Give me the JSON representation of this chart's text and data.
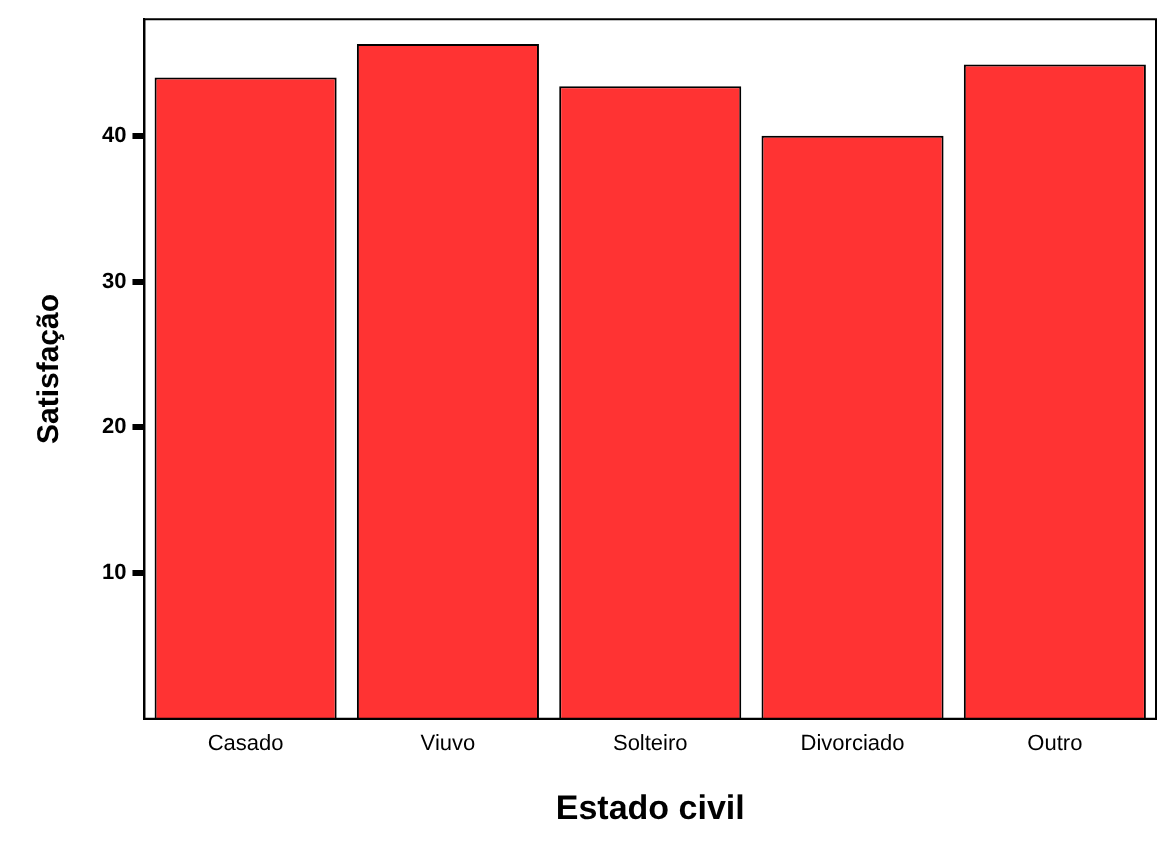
{
  "chart_data": {
    "type": "bar",
    "xlabel": "Estado civil",
    "ylabel": "Satisfação",
    "categories": [
      "Casado",
      "Viuvo",
      "Solteiro",
      "Divorciado",
      "Outro"
    ],
    "values": [
      44,
      46.3,
      43.4,
      40,
      44.9
    ],
    "color": "#ff3333",
    "ylim": [
      0,
      48
    ],
    "yticks": [
      10,
      20,
      30,
      40
    ],
    "grid": false,
    "legend": false
  }
}
